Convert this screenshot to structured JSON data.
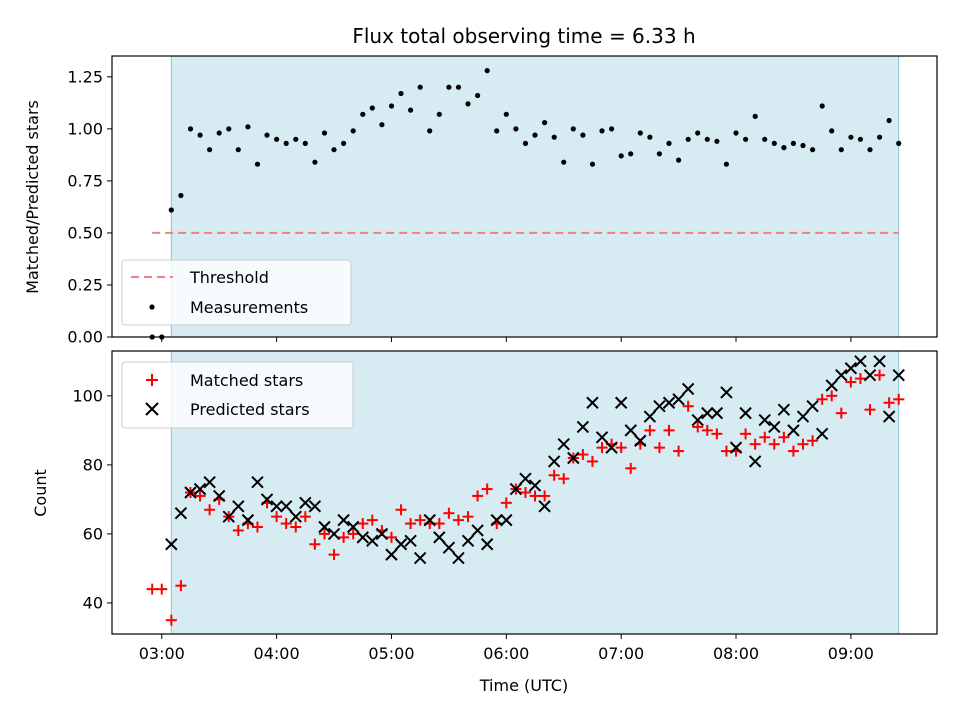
{
  "chart_data": [
    {
      "type": "scatter",
      "title": "Flux total observing time = 6.33 h",
      "xlabel": "",
      "ylabel": "Matched/Predicted stars",
      "xlim": [
        "02:34",
        "09:45"
      ],
      "ylim": [
        0,
        1.35
      ],
      "yticks": [
        0.0,
        0.25,
        0.5,
        0.75,
        1.0,
        1.25
      ],
      "ytick_labels": [
        "0.00",
        "0.25",
        "0.50",
        "0.75",
        "1.00",
        "1.25"
      ],
      "observing_window": [
        "03:05",
        "09:25"
      ],
      "window_color": "#add8e6",
      "threshold": {
        "name": "Threshold",
        "y": 0.5,
        "x_range": [
          "02:55",
          "09:25"
        ],
        "color": "#f08080"
      },
      "legend": {
        "placement": "lower-left",
        "entries": [
          "Threshold",
          "Measurements"
        ]
      },
      "series": [
        {
          "name": "Measurements",
          "color": "#000000",
          "x": [
            "02:55",
            "03:00",
            "03:05",
            "03:10",
            "03:15",
            "03:20",
            "03:25",
            "03:30",
            "03:35",
            "03:40",
            "03:45",
            "03:50",
            "03:55",
            "04:00",
            "04:05",
            "04:10",
            "04:15",
            "04:20",
            "04:25",
            "04:30",
            "04:35",
            "04:40",
            "04:45",
            "04:50",
            "04:55",
            "05:00",
            "05:05",
            "05:10",
            "05:15",
            "05:20",
            "05:25",
            "05:30",
            "05:35",
            "05:40",
            "05:45",
            "05:50",
            "05:55",
            "06:00",
            "06:05",
            "06:10",
            "06:15",
            "06:20",
            "06:25",
            "06:30",
            "06:35",
            "06:40",
            "06:45",
            "06:50",
            "06:55",
            "07:00",
            "07:05",
            "07:10",
            "07:15",
            "07:20",
            "07:25",
            "07:30",
            "07:35",
            "07:40",
            "07:45",
            "07:50",
            "07:55",
            "08:00",
            "08:05",
            "08:10",
            "08:15",
            "08:20",
            "08:25",
            "08:30",
            "08:35",
            "08:40",
            "08:45",
            "08:50",
            "08:55",
            "09:00",
            "09:05",
            "09:10",
            "09:15",
            "09:20",
            "09:25"
          ],
          "y": [
            0.0,
            0.0,
            0.61,
            0.68,
            1.0,
            0.97,
            0.9,
            0.98,
            1.0,
            0.9,
            1.01,
            0.83,
            0.97,
            0.95,
            0.93,
            0.95,
            0.93,
            0.84,
            0.98,
            0.9,
            0.93,
            0.99,
            1.07,
            1.1,
            1.02,
            1.11,
            1.17,
            1.09,
            1.2,
            0.99,
            1.07,
            1.2,
            1.2,
            1.12,
            1.16,
            1.28,
            0.99,
            1.07,
            1.0,
            0.93,
            0.97,
            1.03,
            0.96,
            0.84,
            1.0,
            0.97,
            0.83,
            0.99,
            1.0,
            0.87,
            0.88,
            0.98,
            0.96,
            0.88,
            0.93,
            0.85,
            0.95,
            0.98,
            0.95,
            0.94,
            0.83,
            0.98,
            0.95,
            1.06,
            0.95,
            0.93,
            0.91,
            0.93,
            0.92,
            0.9,
            1.11,
            0.99,
            0.9,
            0.96,
            0.95,
            0.9,
            0.96,
            1.04,
            0.93
          ]
        }
      ]
    },
    {
      "type": "scatter",
      "title": "",
      "xlabel": "Time (UTC)",
      "ylabel": "Count",
      "xlim": [
        "02:34",
        "09:45"
      ],
      "ylim": [
        31,
        113
      ],
      "yticks": [
        40,
        60,
        80,
        100
      ],
      "ytick_labels": [
        "40",
        "60",
        "80",
        "100"
      ],
      "xticks": [
        "03:00",
        "04:00",
        "05:00",
        "06:00",
        "07:00",
        "08:00",
        "09:00"
      ],
      "xtick_labels": [
        "03:00",
        "04:00",
        "05:00",
        "06:00",
        "07:00",
        "08:00",
        "09:00"
      ],
      "observing_window": [
        "03:05",
        "09:25"
      ],
      "window_color": "#add8e6",
      "legend": {
        "placement": "upper-left",
        "entries": [
          "Matched stars",
          "Predicted stars"
        ]
      },
      "x": [
        "02:55",
        "03:00",
        "03:05",
        "03:10",
        "03:15",
        "03:20",
        "03:25",
        "03:30",
        "03:35",
        "03:40",
        "03:45",
        "03:50",
        "03:55",
        "04:00",
        "04:05",
        "04:10",
        "04:15",
        "04:20",
        "04:25",
        "04:30",
        "04:35",
        "04:40",
        "04:45",
        "04:50",
        "04:55",
        "05:00",
        "05:05",
        "05:10",
        "05:15",
        "05:20",
        "05:25",
        "05:30",
        "05:35",
        "05:40",
        "05:45",
        "05:50",
        "05:55",
        "06:00",
        "06:05",
        "06:10",
        "06:15",
        "06:20",
        "06:25",
        "06:30",
        "06:35",
        "06:40",
        "06:45",
        "06:50",
        "06:55",
        "07:00",
        "07:05",
        "07:10",
        "07:15",
        "07:20",
        "07:25",
        "07:30",
        "07:35",
        "07:40",
        "07:45",
        "07:50",
        "07:55",
        "08:00",
        "08:05",
        "08:10",
        "08:15",
        "08:20",
        "08:25",
        "08:30",
        "08:35",
        "08:40",
        "08:45",
        "08:50",
        "08:55",
        "09:00",
        "09:05",
        "09:10",
        "09:15",
        "09:20",
        "09:25"
      ],
      "series": [
        {
          "name": "Matched stars",
          "marker": "plus",
          "color": "#ff0000",
          "y": [
            44,
            44,
            35,
            45,
            72,
            71,
            67,
            70,
            65,
            61,
            63,
            62,
            69,
            65,
            63,
            62,
            65,
            57,
            60,
            54,
            59,
            60,
            63,
            64,
            61,
            59,
            67,
            63,
            64,
            63,
            63,
            66,
            64,
            65,
            71,
            73,
            63,
            69,
            73,
            72,
            71,
            71,
            77,
            76,
            82,
            83,
            81,
            85,
            86,
            85,
            79,
            86,
            90,
            85,
            90,
            84,
            97,
            91,
            90,
            89,
            84,
            84,
            89,
            86,
            88,
            86,
            88,
            84,
            86,
            87,
            99,
            100,
            95,
            104,
            105,
            96,
            106,
            98,
            99
          ]
        },
        {
          "name": "Predicted stars",
          "marker": "cross",
          "color": "#000000",
          "y": [
            null,
            null,
            57,
            66,
            72,
            73,
            75,
            71,
            65,
            68,
            64,
            75,
            70,
            68,
            68,
            65,
            69,
            68,
            62,
            60,
            64,
            62,
            59,
            58,
            60,
            54,
            57,
            58,
            53,
            64,
            59,
            56,
            53,
            58,
            61,
            57,
            64,
            64,
            73,
            76,
            74,
            68,
            81,
            86,
            82,
            91,
            98,
            88,
            85,
            98,
            90,
            87,
            94,
            97,
            98,
            99,
            102,
            93,
            95,
            95,
            101,
            85,
            95,
            81,
            93,
            91,
            96,
            90,
            94,
            97,
            89,
            103,
            106,
            108,
            110,
            106,
            110,
            94,
            106
          ]
        }
      ]
    }
  ]
}
